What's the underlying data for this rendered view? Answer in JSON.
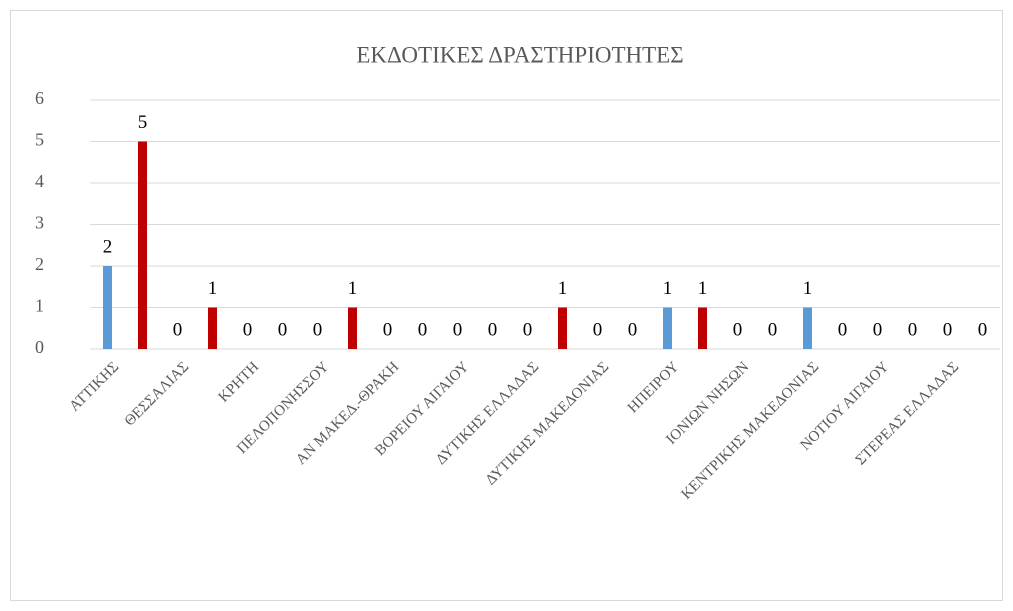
{
  "chart_data": {
    "type": "bar",
    "title": "ΕΚΔΟΤΙΚΕΣ ΔΡΑΣΤΗΡΙΟΤΗΤΕΣ",
    "categories": [
      "ΑΤΤΙΚΗΣ",
      "ΘΕΣΣΑΛΙΑΣ",
      "ΚΡΗΤΗ",
      "ΠΕΛΟΠΟΝΗΣΣΟΥ",
      "ΑΝ ΜΑΚΕΔ.-ΘΡΑΚΗ",
      "ΒΟΡΕΙΟΥ ΑΙΓΑΙΟΥ",
      "ΔΥΤΙΚΗΣ ΕΛΛΑΔΑΣ",
      "ΔΥΤΙΚΗΣ ΜΑΚΕΔΟΝΙΑΣ",
      "ΗΠΕΙΡΟΥ",
      "ΙΟΝΙΩΝ ΝΗΣΩΝ",
      "ΚΕΝΤΡΙΚΗΣ ΜΑΚΕΔΟΝΙΑΣ",
      "ΝΟΤΙΟΥ ΑΙΓΑΙΟΥ",
      "ΣΤΕΡΕΑΣ ΕΛΛΑΔΑΣ"
    ],
    "series": [
      {
        "color": "#5b9bd5",
        "values": [
          2,
          0,
          0,
          0,
          0,
          0,
          0,
          0,
          1,
          0,
          1,
          0,
          0
        ]
      },
      {
        "color": "#c00000",
        "values": [
          5,
          1,
          0,
          1,
          0,
          0,
          1,
          0,
          1,
          0,
          0,
          0,
          0
        ]
      }
    ],
    "ylim": [
      0,
      6
    ],
    "yticks": [
      0,
      1,
      2,
      3,
      4,
      5,
      6
    ],
    "grid": true
  }
}
